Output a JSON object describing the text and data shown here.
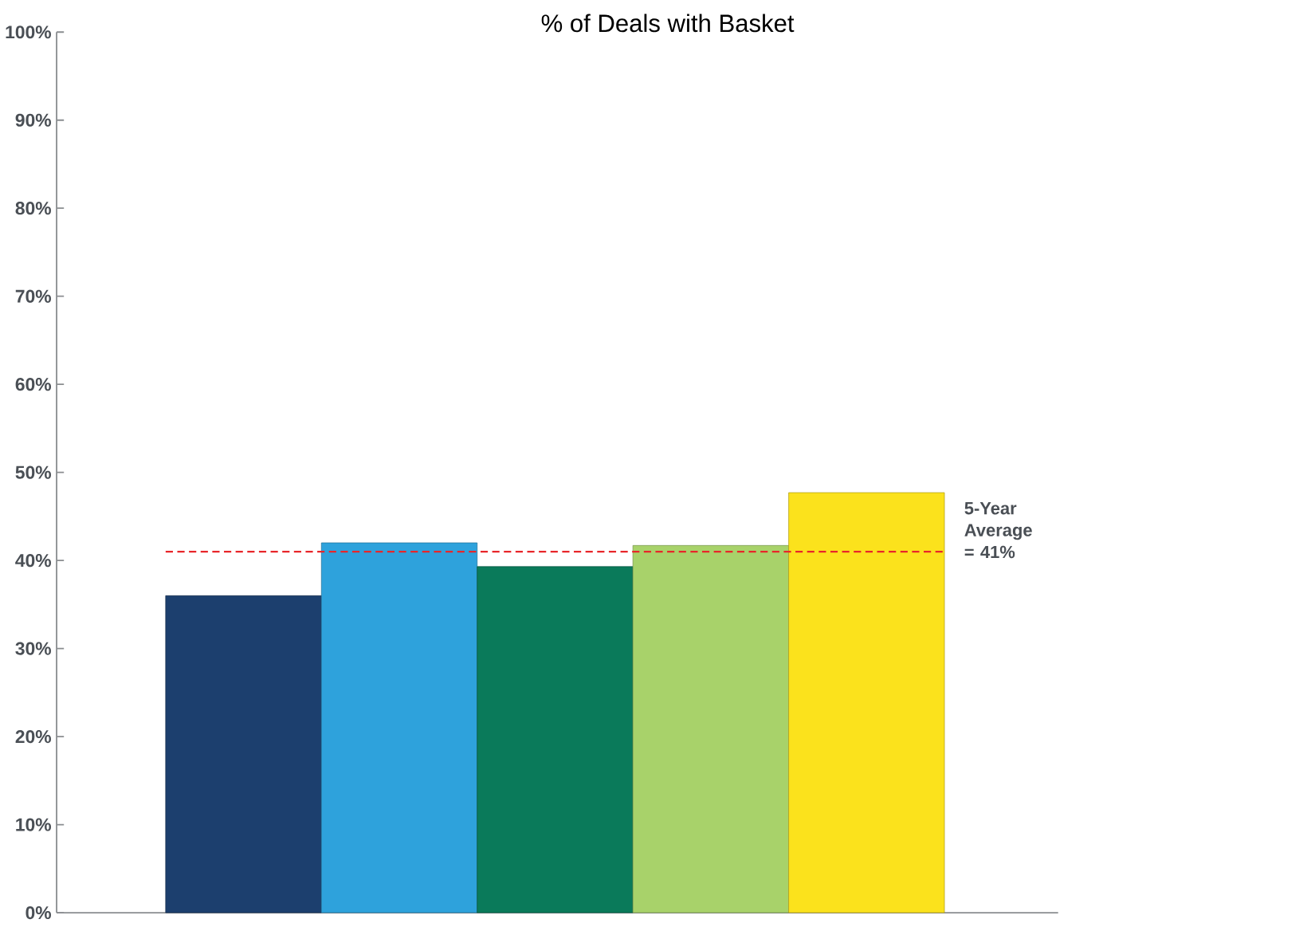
{
  "chart_data": {
    "type": "bar",
    "title": "% of Deals with Basket",
    "categories": [
      null,
      null,
      null,
      null,
      null
    ],
    "values": [
      36,
      42,
      39.3,
      41.7,
      47.7
    ],
    "colors": [
      "#1c3f6e",
      "#2ea2dc",
      "#0a7a5a",
      "#a8d26a",
      "#fbe21c"
    ],
    "ylim": [
      0,
      100
    ],
    "yticks": [
      {
        "value": 0,
        "label": "0%"
      },
      {
        "value": 10,
        "label": "10%"
      },
      {
        "value": 20,
        "label": "20%"
      },
      {
        "value": 30,
        "label": "30%"
      },
      {
        "value": 40,
        "label": "40%"
      },
      {
        "value": 50,
        "label": "50%"
      },
      {
        "value": 60,
        "label": "60%"
      },
      {
        "value": 70,
        "label": "70%"
      },
      {
        "value": 80,
        "label": "80%"
      },
      {
        "value": 90,
        "label": "90%"
      },
      {
        "value": 100,
        "label": "100%"
      }
    ],
    "ref_lines": [
      {
        "axis": "y",
        "value": 41,
        "label": "5-Year Average = 41%",
        "color": "#e8262a",
        "line_style": "dashed"
      }
    ],
    "grid": false
  }
}
